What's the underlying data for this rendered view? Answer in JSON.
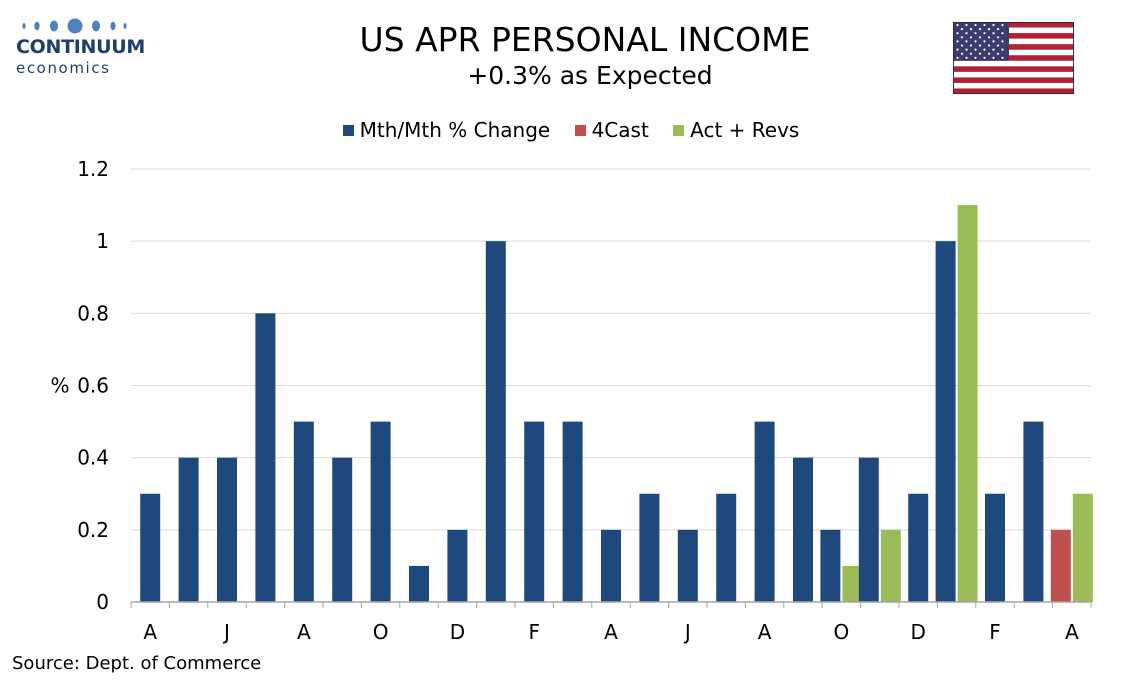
{
  "branding": {
    "logo_name": "CONTINUUM",
    "logo_sub": "economics"
  },
  "header": {
    "title": "US APR PERSONAL INCOME",
    "subtitle": "+0.3% as Expected"
  },
  "flag": {
    "icon": "us-flag-icon"
  },
  "source": "Source: Dept. of Commerce",
  "colors": {
    "mth_mth": "#1f497d",
    "forecast": "#c0504d",
    "act_revs": "#9bbb59",
    "grid": "#d9d9d9"
  },
  "chart_data": {
    "type": "bar",
    "ylabel": "%",
    "ylim": [
      0,
      1.2
    ],
    "yticks": [
      "0",
      "0.2",
      "0.4",
      "0.6",
      "0.8",
      "1",
      "1.2"
    ],
    "grid": true,
    "legend_position": "top",
    "x_tick_labels": [
      "A",
      "J",
      "A",
      "O",
      "D",
      "F",
      "A",
      "J",
      "A",
      "O",
      "D",
      "F",
      "A"
    ],
    "series": [
      {
        "name": "Mth/Mth % Change",
        "values": [
          0.3,
          0.4,
          0.4,
          0.8,
          0.5,
          0.4,
          0.5,
          0.1,
          0.2,
          1.0,
          0.5,
          0.5,
          0.2,
          0.3,
          0.2,
          0.3,
          0.5,
          0.4,
          0.2,
          0.4,
          0.3,
          1.0,
          0.3,
          0.5,
          null
        ]
      },
      {
        "name": "4Cast",
        "values": [
          null,
          null,
          null,
          null,
          null,
          null,
          null,
          null,
          null,
          null,
          null,
          null,
          null,
          null,
          null,
          null,
          null,
          null,
          null,
          null,
          null,
          null,
          null,
          null,
          0.2
        ]
      },
      {
        "name": "Act + Revs",
        "values": [
          null,
          null,
          null,
          null,
          null,
          null,
          null,
          null,
          null,
          null,
          null,
          null,
          null,
          null,
          null,
          null,
          null,
          null,
          0.1,
          0.2,
          null,
          1.1,
          null,
          null,
          0.3
        ]
      }
    ]
  }
}
